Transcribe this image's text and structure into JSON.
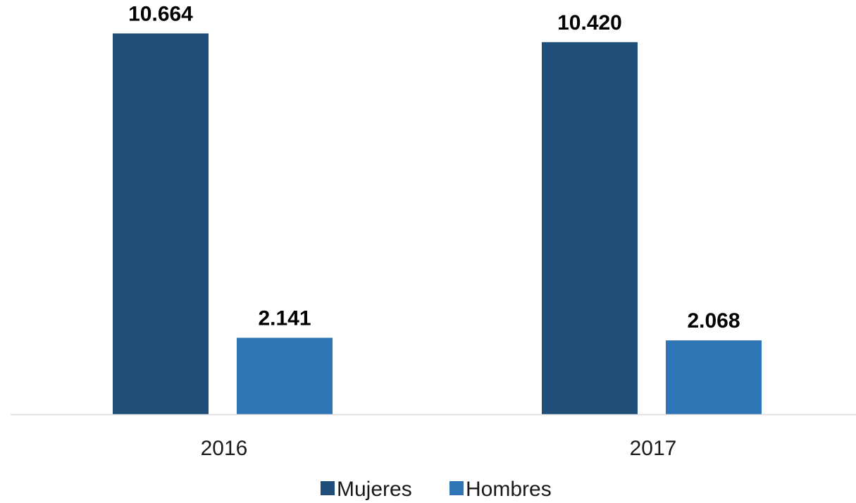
{
  "chart_data": {
    "type": "bar",
    "categories": [
      "2016",
      "2017"
    ],
    "series": [
      {
        "name": "Mujeres",
        "values": [
          10664,
          10420
        ],
        "labels": [
          "10.664",
          "10.420"
        ],
        "color": "#1f4e79"
      },
      {
        "name": "Hombres",
        "values": [
          2141,
          2068
        ],
        "labels": [
          "2.141",
          "2.068"
        ],
        "color": "#2e75b6"
      }
    ],
    "title": "",
    "xlabel": "",
    "ylabel": "",
    "ylim": [
      0,
      11600
    ],
    "grid": false,
    "legend": "bottom",
    "axis_color": "#d9d9d9"
  }
}
